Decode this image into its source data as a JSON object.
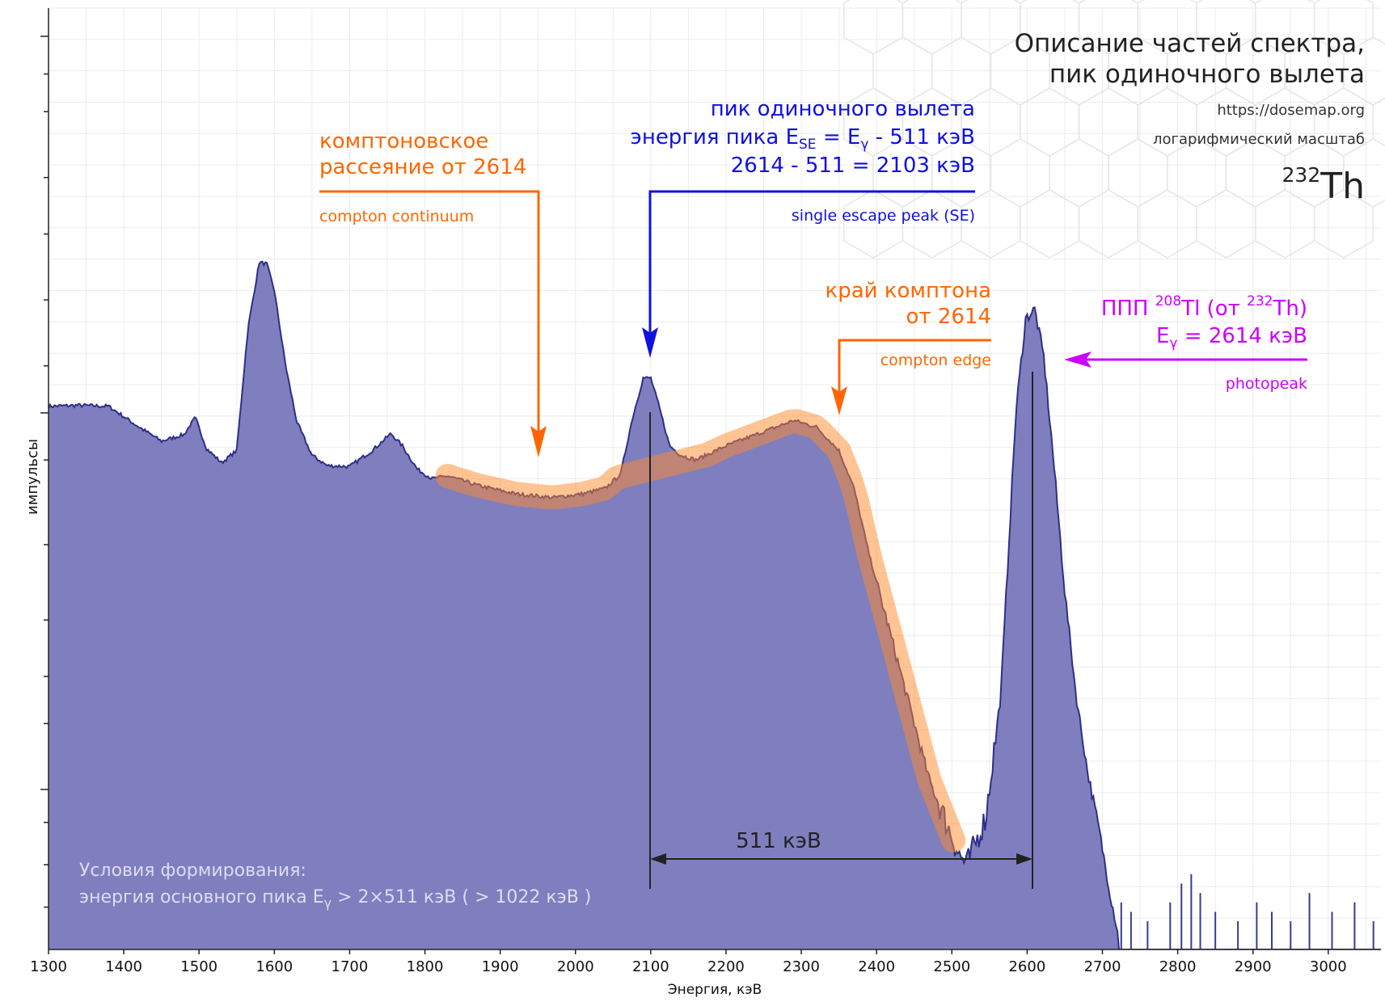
{
  "chart_data": {
    "type": "area",
    "title": "Описание частей спектра,",
    "title_line2": "пик одиночного вылета",
    "site": "https://dosemap.org",
    "scale_note": "логарифмический масштаб",
    "isotope_mass": "232",
    "isotope_symbol": "Th",
    "xlabel": "Энергия, кэВ",
    "ylabel": "импульсы",
    "xlim": [
      1300,
      3070
    ],
    "ylim": [
      0,
      1
    ],
    "y_scale": "log",
    "grid": true,
    "x_ticks": [
      1300,
      1400,
      1500,
      1600,
      1700,
      1800,
      1900,
      2000,
      2100,
      2200,
      2300,
      2400,
      2500,
      2600,
      2700,
      2800,
      2900,
      3000
    ],
    "series_color": "#7f7fbf",
    "series_line_color": "#2f2f86",
    "x": [
      1300,
      1340,
      1380,
      1420,
      1450,
      1480,
      1495,
      1510,
      1530,
      1550,
      1565,
      1580,
      1590,
      1600,
      1615,
      1630,
      1650,
      1670,
      1700,
      1730,
      1755,
      1770,
      1790,
      1810,
      1830,
      1870,
      1920,
      1970,
      2010,
      2040,
      2060,
      2075,
      2090,
      2100,
      2110,
      2125,
      2140,
      2160,
      2200,
      2250,
      2290,
      2320,
      2350,
      2370,
      2390,
      2420,
      2450,
      2470,
      2490,
      2500,
      2510,
      2520,
      2530,
      2545,
      2565,
      2585,
      2598,
      2610,
      2622,
      2635,
      2650,
      2665,
      2680,
      2695,
      2710,
      2720,
      2722,
      2800,
      2900,
      3000,
      3070
    ],
    "y": [
      0.577,
      0.578,
      0.577,
      0.555,
      0.54,
      0.547,
      0.565,
      0.532,
      0.517,
      0.53,
      0.66,
      0.73,
      0.728,
      0.7,
      0.62,
      0.56,
      0.525,
      0.514,
      0.513,
      0.53,
      0.548,
      0.535,
      0.51,
      0.5,
      0.503,
      0.493,
      0.484,
      0.48,
      0.484,
      0.49,
      0.505,
      0.562,
      0.607,
      0.607,
      0.58,
      0.535,
      0.525,
      0.52,
      0.535,
      0.55,
      0.562,
      0.555,
      0.53,
      0.49,
      0.42,
      0.33,
      0.24,
      0.18,
      0.14,
      0.12,
      0.1,
      0.09,
      0.11,
      0.14,
      0.27,
      0.57,
      0.67,
      0.68,
      0.63,
      0.52,
      0.38,
      0.27,
      0.19,
      0.13,
      0.06,
      0.02,
      0.0,
      0.0,
      0.0,
      0.0,
      0.0
    ],
    "highlight_range_keV": [
      1830,
      2505
    ],
    "spacing_arrow": {
      "from_keV": 2103,
      "to_keV": 2614,
      "label": "511 кэВ"
    },
    "annotations": [
      {
        "ru_line1": "комптоновское",
        "ru_line2": "рассеяние от 2614",
        "en": "compton continuum",
        "color": "#ff6600",
        "target_keV": 1950
      },
      {
        "ru_line1": "пик одиночного вылета",
        "ru_line2_pre": "энергия пика E",
        "ru_line2_sub1": "SE",
        "ru_line2_mid": " = E",
        "ru_line2_sub2": "γ",
        "ru_line2_post": " - 511 кэВ",
        "ru_line3": "2614 - 511 = 2103 кэВ",
        "en": "single escape peak (SE)",
        "color": "#1010e0",
        "target_keV": 2103
      },
      {
        "ru_line1": "край комптона",
        "ru_line2": "от 2614",
        "en": "compton edge",
        "color": "#ff6600",
        "target_keV": 2350
      },
      {
        "ru_line1_pre": "ППП ",
        "ru_line1_sup1": "208",
        "ru_line1_mid": "Tl (от ",
        "ru_line1_sup2": "232",
        "ru_line1_post": "Th)",
        "ru_line2_pre": "E",
        "ru_line2_sub": "γ",
        "ru_line2_post": " = 2614 кэВ",
        "en": "photopeak",
        "color": "#cc00ff",
        "target_keV": 2614
      }
    ],
    "conditions_line1": "Условия формирования:",
    "conditions_line2_pre": "энергия основного пика E",
    "conditions_line2_sub": "γ",
    "conditions_line2_post": " > 2×511 кэВ ( > 1022 кэВ )"
  }
}
